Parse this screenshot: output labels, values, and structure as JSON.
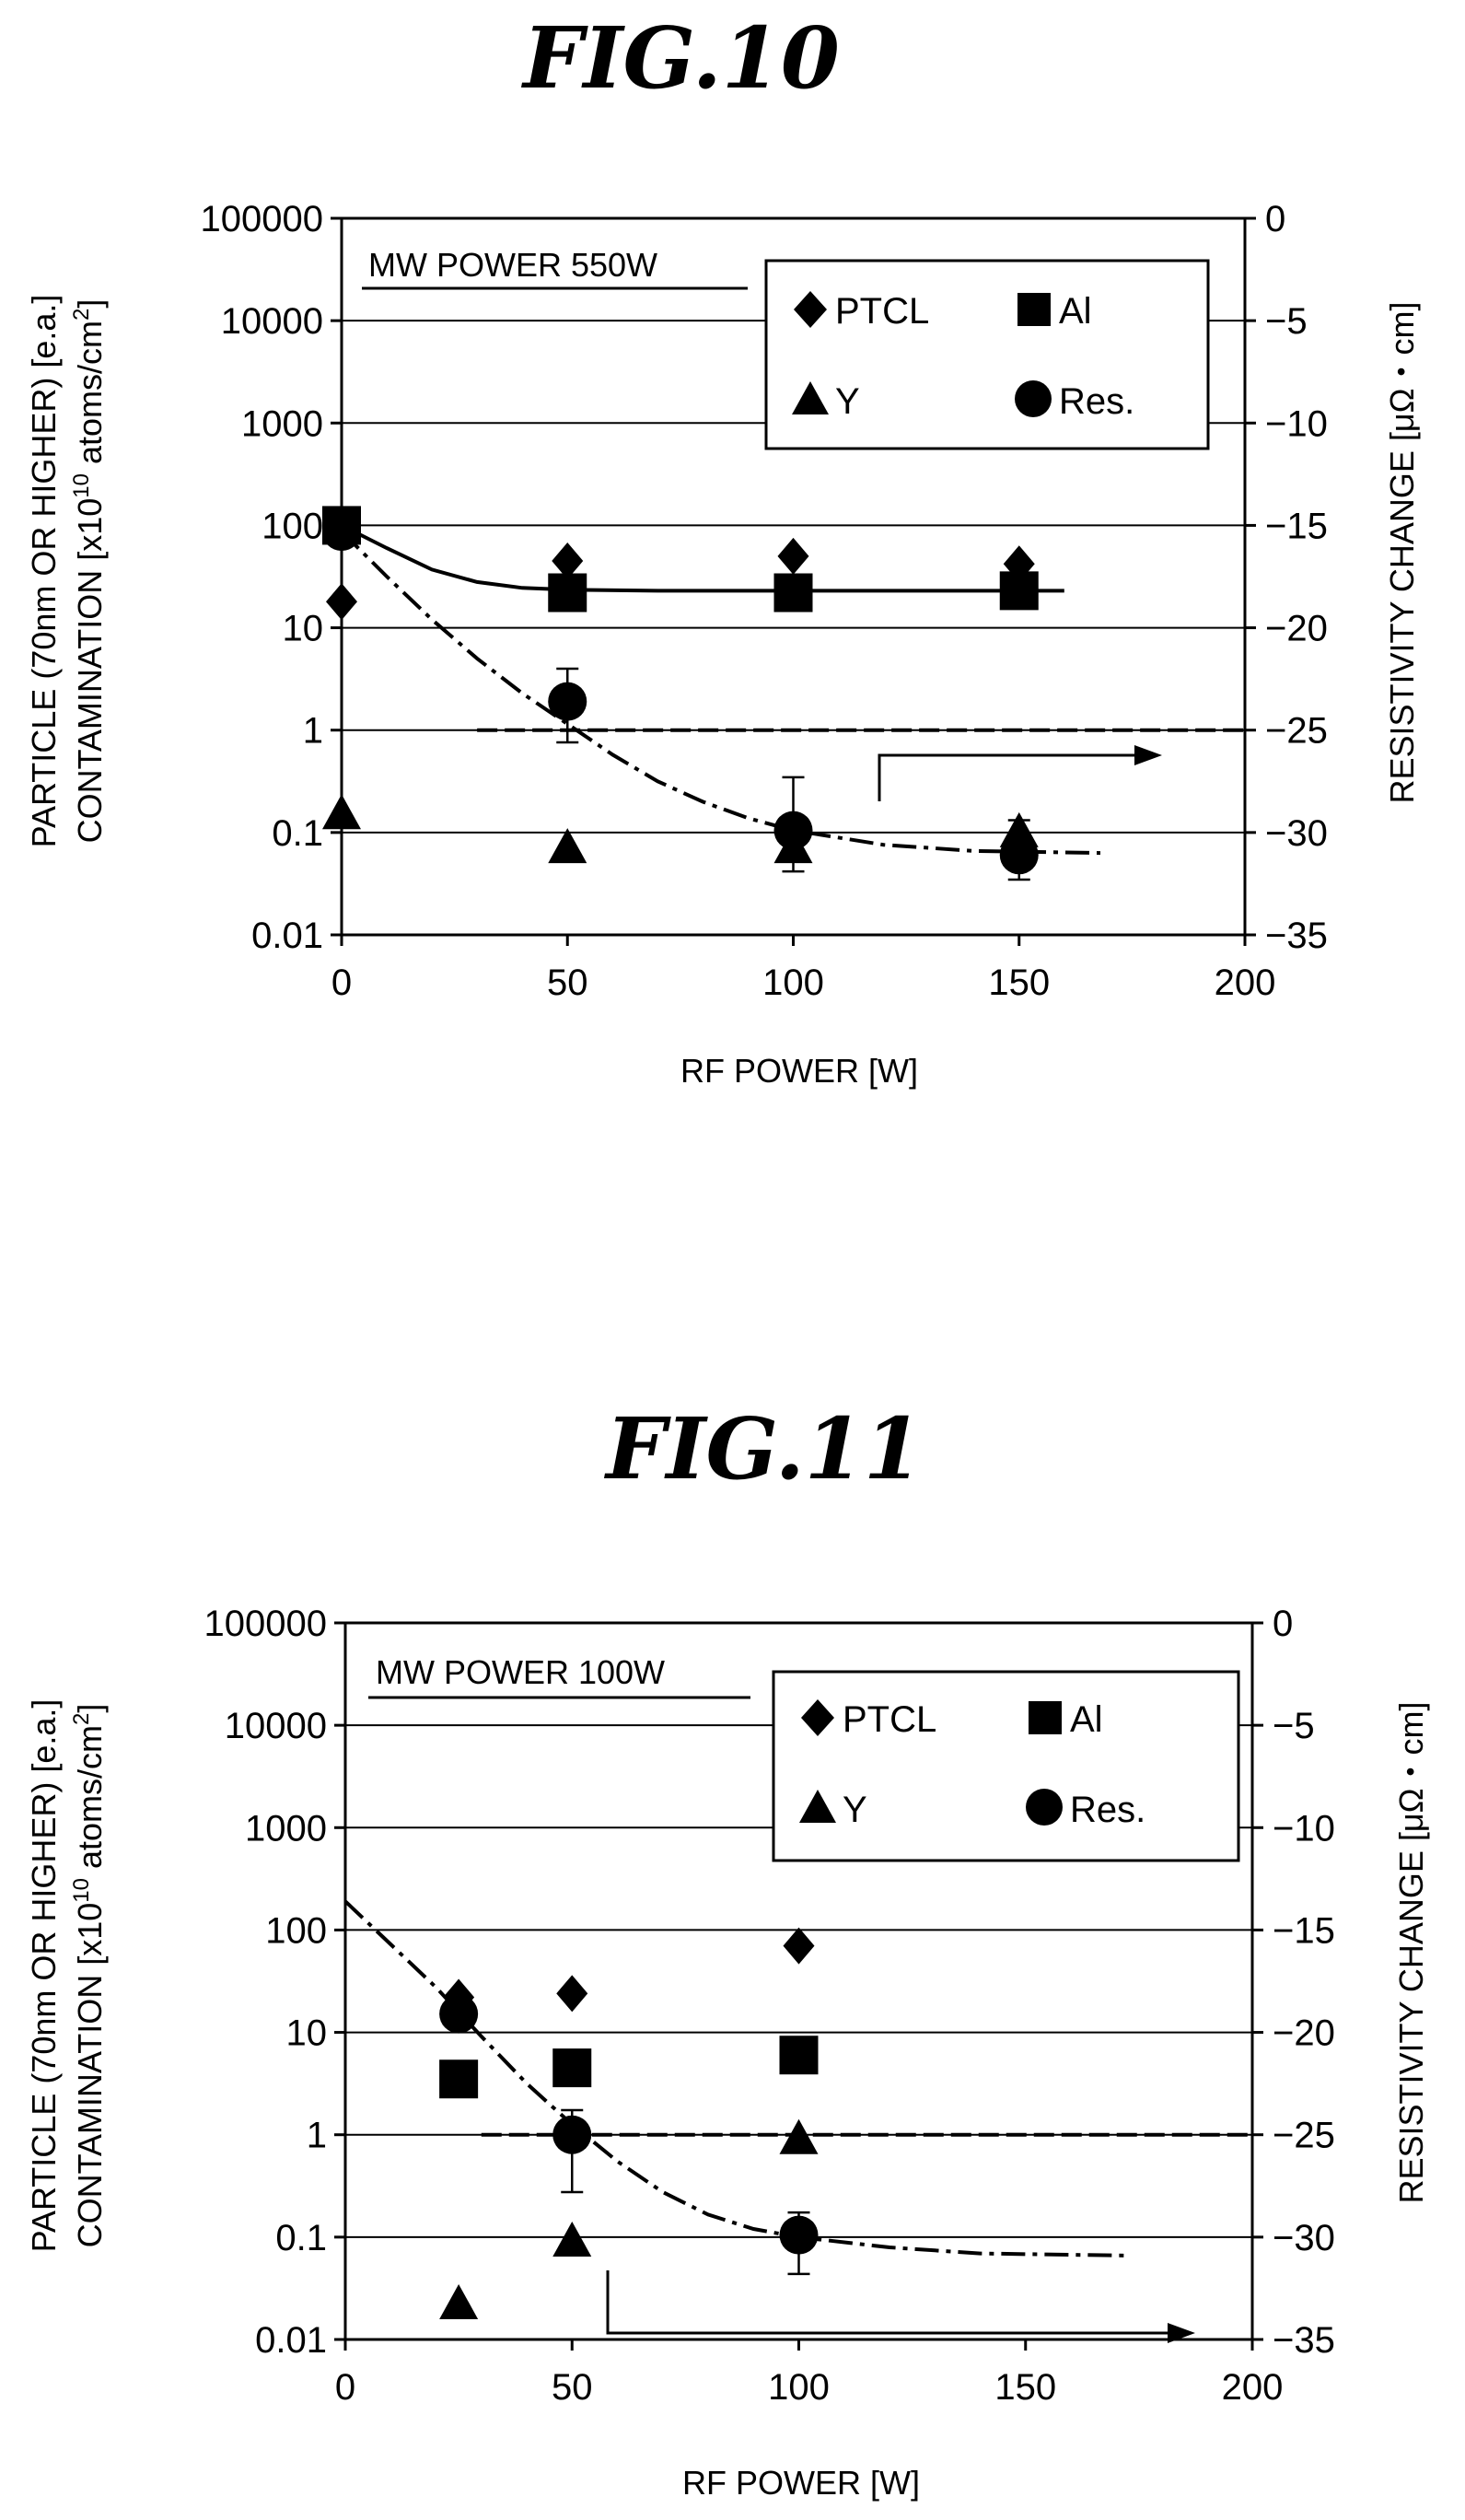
{
  "chart_data": [
    {
      "type": "scatter",
      "title": "FIG.10",
      "annotation": "MW POWER 550W",
      "xlabel": "RF POWER [W]",
      "ylabel_line1": "PARTICLE (70nm OR HIGHER) [e.a.]",
      "ylabel_line2": "CONTAMINATION [x10",
      "ylabel_line2_sup": "10",
      "ylabel_line2_rest": " atoms/cm",
      "ylabel_line2_sup2": "2",
      "ylabel_line2_end": "]",
      "y2label": "RESISTIVITY CHANGE [μΩ・cm]",
      "x_ticks": [
        "0",
        "50",
        "100",
        "150",
        "200"
      ],
      "xlim": [
        0,
        200
      ],
      "y_ticks": [
        "0.01",
        "0.1",
        "1",
        "10",
        "100",
        "1000",
        "10000",
        "100000"
      ],
      "ylim": [
        0.01,
        100000
      ],
      "yscale": "log",
      "y2_ticks": [
        "0",
        "−5",
        "−10",
        "−15",
        "−20",
        "−25",
        "−30",
        "−35"
      ],
      "y2lim": [
        -35,
        0
      ],
      "legend": [
        "PTCL",
        "Al",
        "Y",
        "Res."
      ],
      "legend_position": "top-right",
      "grid": "horizontal",
      "series": [
        {
          "name": "PTCL",
          "marker": "diamond",
          "x": [
            0,
            50,
            100,
            150
          ],
          "y": [
            18,
            45,
            50,
            42
          ]
        },
        {
          "name": "Al",
          "marker": "square",
          "x": [
            0,
            50,
            100,
            150
          ],
          "y": [
            100,
            22,
            22,
            23
          ]
        },
        {
          "name": "Y",
          "marker": "triangle",
          "x": [
            0,
            50,
            100,
            150
          ],
          "y": [
            0.15,
            0.07,
            0.07,
            0.1
          ]
        },
        {
          "name": "Res.",
          "marker": "circle",
          "axis": "right",
          "x": [
            0,
            50,
            100,
            150
          ],
          "y": [
            -15.3,
            -23.6,
            -29.9,
            -31.1
          ],
          "err_low": [
            -15.3,
            -25.6,
            -31.9,
            -32.3
          ],
          "err_high": [
            -15.3,
            -22.0,
            -27.3,
            -29.4
          ]
        }
      ],
      "reference_line_right": -25,
      "fits": {
        "solid": [
          [
            0,
            100
          ],
          [
            10,
            60
          ],
          [
            20,
            37
          ],
          [
            30,
            28
          ],
          [
            40,
            24.5
          ],
          [
            50,
            23.5
          ],
          [
            70,
            23
          ],
          [
            100,
            23
          ],
          [
            160,
            23
          ]
        ],
        "dash_dot": [
          [
            0,
            -15.3
          ],
          [
            10,
            -17.5
          ],
          [
            20,
            -19.6
          ],
          [
            30,
            -21.5
          ],
          [
            40,
            -23.2
          ],
          [
            50,
            -24.7
          ],
          [
            60,
            -26.2
          ],
          [
            70,
            -27.5
          ],
          [
            80,
            -28.5
          ],
          [
            90,
            -29.3
          ],
          [
            100,
            -29.9
          ],
          [
            120,
            -30.6
          ],
          [
            140,
            -30.9
          ],
          [
            168,
            -31.0
          ]
        ]
      }
    },
    {
      "type": "scatter",
      "title": "FIG.11",
      "annotation": "MW POWER 100W",
      "xlabel": "RF POWER [W]",
      "ylabel_line1": "PARTICLE (70nm OR HIGHER) [e.a.]",
      "ylabel_line2": "CONTAMINATION [x10",
      "ylabel_line2_sup": "10",
      "ylabel_line2_rest": " atoms/cm",
      "ylabel_line2_sup2": "2",
      "ylabel_line2_end": "]",
      "y2label": "RESISTIVITY CHANGE [μΩ・cm]",
      "x_ticks": [
        "0",
        "50",
        "100",
        "150",
        "200"
      ],
      "xlim": [
        0,
        200
      ],
      "y_ticks": [
        "0.01",
        "0.1",
        "1",
        "10",
        "100",
        "1000",
        "10000",
        "100000"
      ],
      "ylim": [
        0.01,
        100000
      ],
      "yscale": "log",
      "y2_ticks": [
        "0",
        "−5",
        "−10",
        "−15",
        "−20",
        "−25",
        "−30",
        "−35"
      ],
      "y2lim": [
        -35,
        0
      ],
      "legend": [
        "PTCL",
        "Al",
        "Y",
        "Res."
      ],
      "legend_position": "top-right",
      "grid": "horizontal",
      "series": [
        {
          "name": "PTCL",
          "marker": "diamond",
          "x": [
            25,
            50,
            100
          ],
          "y": [
            22,
            24,
            70
          ]
        },
        {
          "name": "Al",
          "marker": "square",
          "x": [
            25,
            50,
            100
          ],
          "y": [
            3.5,
            4.5,
            6
          ]
        },
        {
          "name": "Y",
          "marker": "triangle",
          "x": [
            25,
            50,
            100
          ],
          "y": [
            0.022,
            0.09,
            0.9
          ]
        },
        {
          "name": "Res.",
          "marker": "circle",
          "axis": "right",
          "x": [
            25,
            50,
            100
          ],
          "y": [
            -19.1,
            -25.0,
            -29.9
          ],
          "err_low": [
            -19.1,
            -27.8,
            -31.8
          ],
          "err_high": [
            -19.1,
            -23.8,
            -28.8
          ]
        }
      ],
      "reference_line_right": -25,
      "fits": {
        "dash_dot": [
          [
            0,
            -13.6
          ],
          [
            10,
            -15.7
          ],
          [
            20,
            -17.8
          ],
          [
            30,
            -20.2
          ],
          [
            40,
            -22.5
          ],
          [
            50,
            -24.5
          ],
          [
            60,
            -26.3
          ],
          [
            70,
            -27.8
          ],
          [
            80,
            -28.9
          ],
          [
            90,
            -29.6
          ],
          [
            100,
            -30.0
          ],
          [
            120,
            -30.5
          ],
          [
            140,
            -30.8
          ],
          [
            172,
            -30.9
          ]
        ]
      }
    }
  ]
}
